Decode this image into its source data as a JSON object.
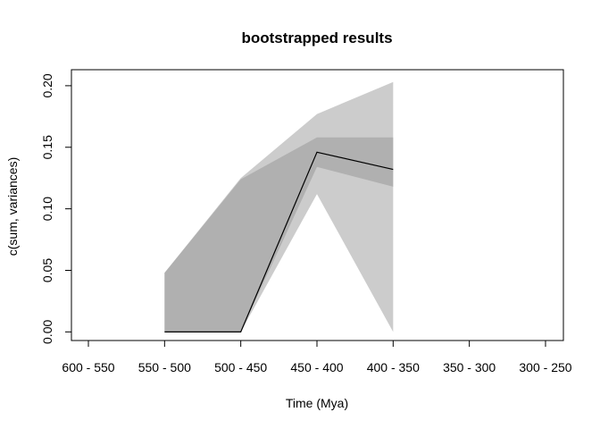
{
  "chart_data": {
    "type": "area",
    "title": "bootstrapped results",
    "xlabel": "Time (Mya)",
    "ylabel": "c(sum, variances)",
    "categories": [
      "600 - 550",
      "550 - 500",
      "500 - 450",
      "450 - 400",
      "400 - 350",
      "350 - 300",
      "300 - 250"
    ],
    "ylim": [
      -0.007,
      0.213
    ],
    "yticks": [
      "0.00",
      "0.05",
      "0.10",
      "0.15",
      "0.20"
    ],
    "grid": false,
    "bands": [
      {
        "fill": "#cccccc",
        "points": [
          {
            "category": "550 - 500",
            "lower": 0.0,
            "upper": 0.048
          },
          {
            "category": "500 - 450",
            "lower": 0.0,
            "upper": 0.125
          },
          {
            "category": "450 - 400",
            "lower": 0.112,
            "upper": 0.177
          },
          {
            "category": "400 - 350",
            "lower": 0.0,
            "upper": 0.203
          }
        ]
      },
      {
        "fill": "#b0b0b0",
        "points": [
          {
            "category": "550 - 500",
            "lower": 0.0,
            "upper": 0.048
          },
          {
            "category": "500 - 450",
            "lower": 0.0,
            "upper": 0.124
          },
          {
            "category": "450 - 400",
            "lower": 0.134,
            "upper": 0.158
          },
          {
            "category": "400 - 350",
            "lower": 0.118,
            "upper": 0.158
          }
        ]
      }
    ],
    "line": {
      "color": "#000000",
      "points": [
        {
          "category": "550 - 500",
          "value": 0.0
        },
        {
          "category": "500 - 450",
          "value": 0.0
        },
        {
          "category": "450 - 400",
          "value": 0.146
        },
        {
          "category": "400 - 350",
          "value": 0.132
        }
      ]
    }
  }
}
